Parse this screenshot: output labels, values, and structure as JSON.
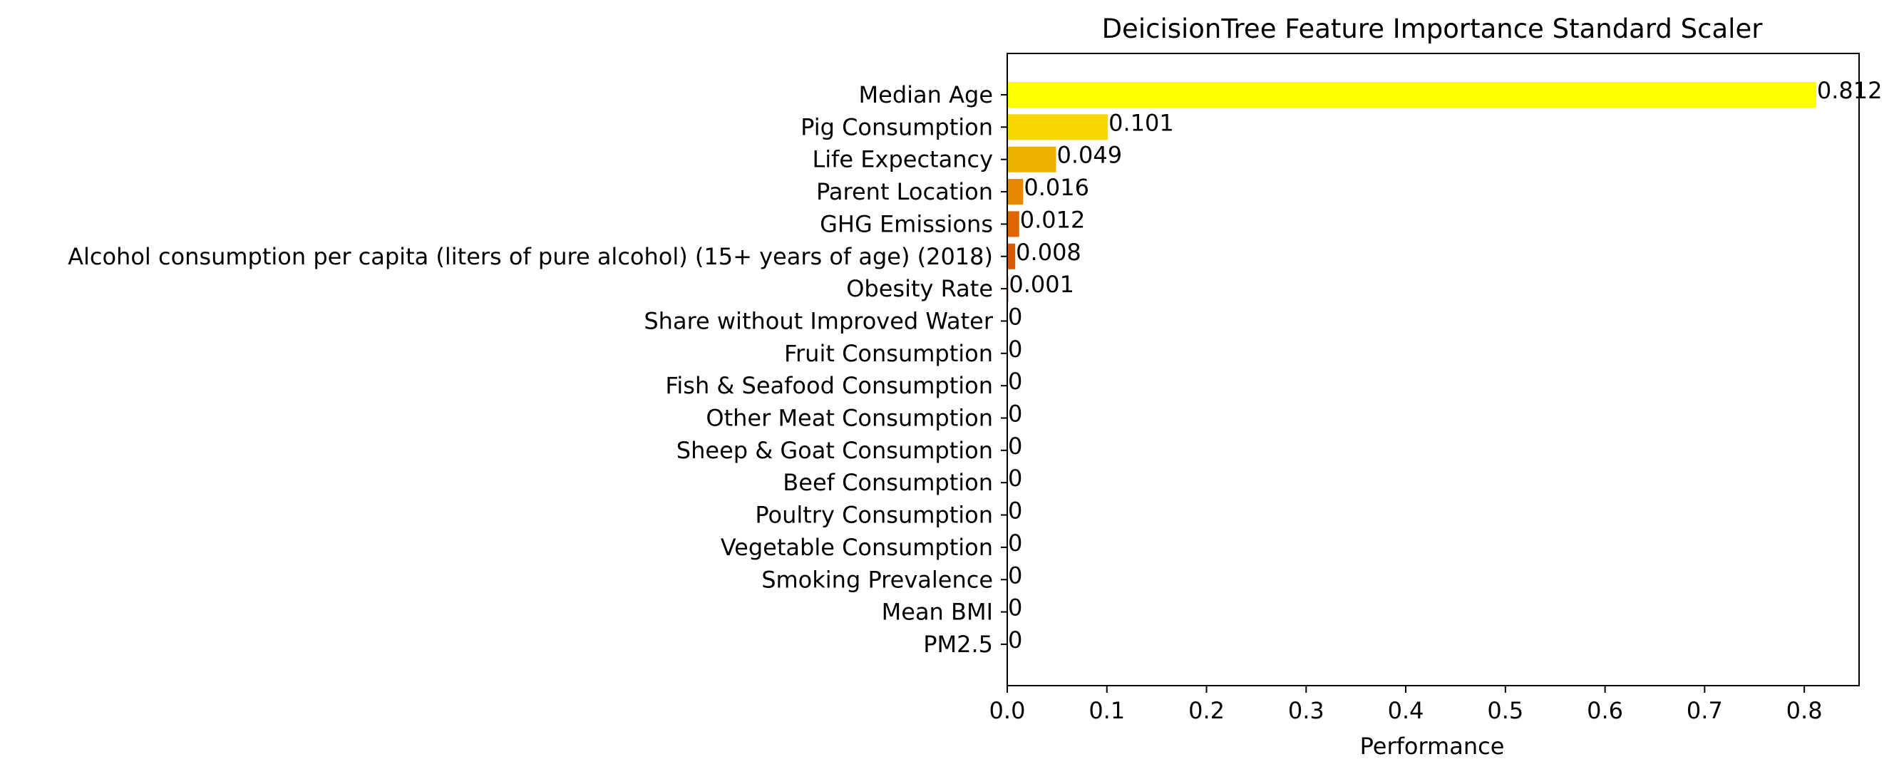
{
  "chart_data": {
    "type": "bar",
    "orientation": "horizontal",
    "title": "DeicisionTree Feature Importance Standard Scaler",
    "xlabel": "Performance",
    "ylabel": "",
    "xlim": [
      0,
      0.855
    ],
    "xticks": [
      "0.0",
      "0.1",
      "0.2",
      "0.3",
      "0.4",
      "0.5",
      "0.6",
      "0.7",
      "0.8"
    ],
    "grid": false,
    "categories": [
      "Median Age",
      "Pig Consumption",
      "Life Expectancy",
      "Parent Location",
      "GHG Emissions",
      "Alcohol consumption per capita (liters of pure alcohol) (15+ years of age) (2018)",
      "Obesity Rate",
      "Share without Improved Water",
      "Fruit Consumption",
      "Fish & Seafood Consumption",
      "Other Meat Consumption",
      "Sheep & Goat Consumption",
      "Beef Consumption",
      "Poultry Consumption",
      "Vegetable Consumption",
      "Smoking Prevalence",
      "Mean BMI",
      "PM2.5"
    ],
    "values": [
      0.812,
      0.101,
      0.049,
      0.016,
      0.012,
      0.008,
      0.001,
      0,
      0,
      0,
      0,
      0,
      0,
      0,
      0,
      0,
      0,
      0
    ],
    "value_labels": [
      "0.812",
      "0.101",
      "0.049",
      "0.016",
      "0.012",
      "0.008",
      "0.001",
      "0",
      "0",
      "0",
      "0",
      "0",
      "0",
      "0",
      "0",
      "0",
      "0",
      "0"
    ],
    "colors": [
      "#ffff00",
      "#f7d800",
      "#f0b000",
      "#e88800",
      "#e06400",
      "#d85a00",
      "#cc4400",
      "#c03000",
      "#b42000",
      "#a81400",
      "#9c0a00",
      "#900000",
      "#840000",
      "#780000",
      "#6c0000",
      "#600000",
      "#540000",
      "#480000"
    ]
  }
}
